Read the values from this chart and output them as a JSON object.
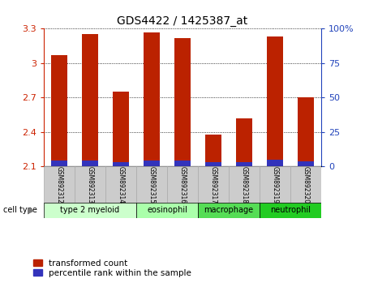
{
  "title": "GDS4422 / 1425387_at",
  "samples": [
    "GSM892312",
    "GSM892313",
    "GSM892314",
    "GSM892315",
    "GSM892316",
    "GSM892317",
    "GSM892318",
    "GSM892319",
    "GSM892320"
  ],
  "transformed_counts": [
    3.07,
    3.25,
    2.75,
    3.27,
    3.22,
    2.38,
    2.52,
    3.23,
    2.7
  ],
  "percentile_heights": [
    0.052,
    0.052,
    0.038,
    0.052,
    0.052,
    0.038,
    0.038,
    0.058,
    0.042
  ],
  "bar_bottom": 2.1,
  "ylim": [
    2.1,
    3.3
  ],
  "yticks": [
    2.1,
    2.4,
    2.7,
    3.0,
    3.3
  ],
  "ytick_labels": [
    "2.1",
    "2.4",
    "2.7",
    "3",
    "3.3"
  ],
  "right_yticks": [
    0,
    25,
    50,
    75,
    100
  ],
  "right_ytick_labels": [
    "0",
    "25",
    "50",
    "75",
    "100%"
  ],
  "bar_color": "#bb2200",
  "percentile_color": "#3333bb",
  "cell_types": [
    {
      "label": "type 2 myeloid",
      "start": 0,
      "end": 3,
      "color": "#ccffcc"
    },
    {
      "label": "eosinophil",
      "start": 3,
      "end": 5,
      "color": "#aaffaa"
    },
    {
      "label": "macrophage",
      "start": 5,
      "end": 7,
      "color": "#55dd55"
    },
    {
      "label": "neutrophil",
      "start": 7,
      "end": 9,
      "color": "#22cc22"
    }
  ],
  "legend_red_label": "transformed count",
  "legend_blue_label": "percentile rank within the sample",
  "cell_type_label": "cell type",
  "bar_width": 0.55,
  "background_color": "#ffffff",
  "tick_color_left": "#cc2200",
  "tick_color_right": "#2244bb",
  "sample_box_color": "#cccccc",
  "sample_box_edge": "#aaaaaa"
}
